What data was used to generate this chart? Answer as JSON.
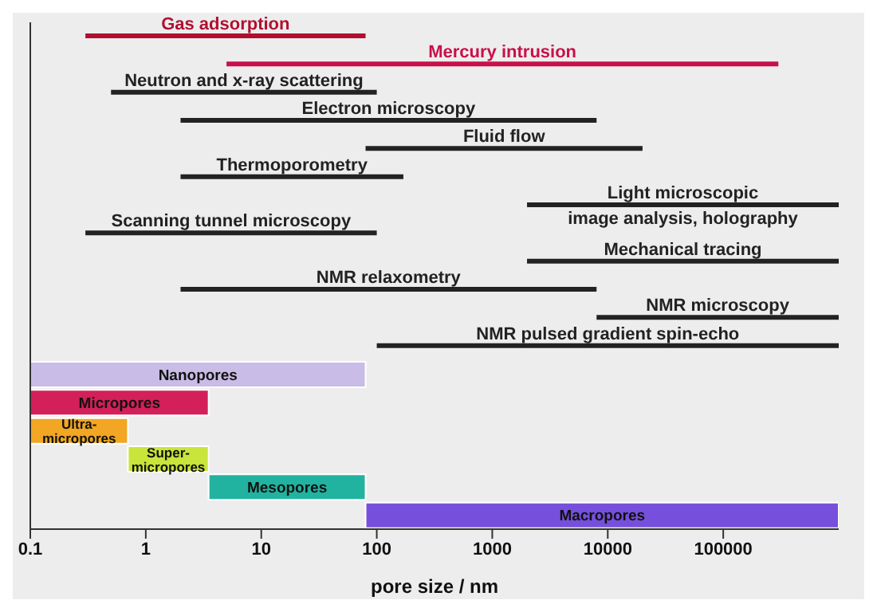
{
  "chart_data": {
    "type": "bar",
    "orientation": "horizontal",
    "log": "x",
    "xlabel": "pore size / nm",
    "tick_labels": "x",
    "legend": false,
    "grid": false,
    "categories": [
      "Gas adsorption",
      "Mercury intrusion",
      "Neutron and x-ray scattering",
      "Electron microscopy",
      "Fluid flow",
      "Thermoporometry",
      "Light microscopic image analysis, holography",
      "Scanning tunnel microscopy",
      "Mechanical tracing",
      "NMR relaxometry",
      "NMR microscopy",
      "NMR pulsed gradient spin-echo",
      "Nanopores",
      "Micropores",
      "Ultra-micropores",
      "Super-micropores",
      "Mesopores",
      "Macropores"
    ],
    "series": [
      {
        "type": "bar",
        "base": [
          0.3,
          5,
          0.5,
          2,
          80,
          2,
          2000,
          0.3,
          2000,
          2,
          8000,
          100,
          null,
          null,
          null,
          null,
          null,
          null
        ],
        "values": [
          79.7,
          299995,
          99.5,
          7998,
          19920,
          168,
          998000,
          99.7,
          998000,
          7998,
          992000,
          999900,
          null,
          null,
          null,
          null,
          null,
          null
        ],
        "colors": [
          "#b01030",
          "#c8104a",
          "#222222",
          "#222222",
          "#222222",
          "#222222",
          "#222222",
          "#222222",
          "#222222",
          "#222222",
          "#222222",
          "#222222",
          null,
          null,
          null,
          null,
          null,
          null
        ]
      },
      {
        "type": "bar",
        "base": [
          null,
          null,
          null,
          null,
          null,
          null,
          null,
          null,
          null,
          null,
          null,
          null,
          0.1,
          0.1,
          0.1,
          0.7,
          3.5,
          80
        ],
        "values": [
          null,
          null,
          null,
          null,
          null,
          null,
          null,
          null,
          null,
          null,
          null,
          null,
          79.9,
          3.4,
          0.6,
          2.8,
          76.5,
          999920
        ],
        "colors": [
          null,
          null,
          null,
          null,
          null,
          null,
          null,
          null,
          null,
          null,
          null,
          null,
          "#c9bce6",
          "#d3205a",
          "#f2a623",
          "#c9e43a",
          "#22b3a0",
          "#7650dc"
        ]
      }
    ],
    "xlim": [
      0.1,
      1000000
    ],
    "xticks": [
      0.1,
      1,
      10,
      100,
      1000,
      10000,
      100000
    ]
  }
}
